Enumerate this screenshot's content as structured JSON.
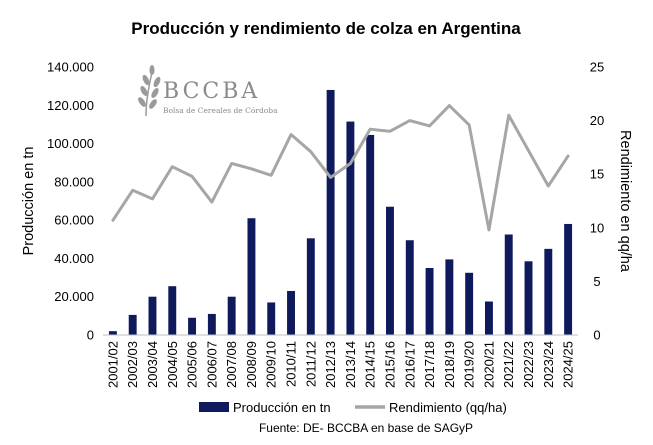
{
  "chart_data": {
    "type": "bar+line",
    "title": "Producción y rendimiento de colza en Argentina",
    "categories": [
      "2001/02",
      "2002/03",
      "2003/04",
      "2004/05",
      "2005/06",
      "2006/07",
      "2007/08",
      "2008/09",
      "2009/10",
      "2010/11",
      "2011/12",
      "2012/13",
      "2013/14",
      "2014/15",
      "2015/16",
      "2016/17",
      "2017/18",
      "2018/19",
      "2019/20",
      "2020/21",
      "2021/22",
      "2022/23",
      "2023/24",
      "2024/25"
    ],
    "series": [
      {
        "name": "Producción en tn",
        "type": "bar",
        "axis": "left",
        "color": "#0e1a5c",
        "values": [
          2000,
          10500,
          20000,
          25500,
          9000,
          11000,
          20000,
          61000,
          17000,
          23000,
          50500,
          128000,
          111500,
          104500,
          67000,
          49500,
          35000,
          39500,
          32500,
          17500,
          52500,
          38500,
          45000,
          58000
        ]
      },
      {
        "name": "Rendimiento (qq/ha)",
        "type": "line",
        "axis": "right",
        "color": "#a6a6a6",
        "values": [
          10.7,
          13.5,
          12.7,
          15.7,
          14.8,
          12.4,
          16.0,
          15.5,
          14.9,
          18.7,
          17.1,
          14.7,
          16.0,
          19.2,
          19.0,
          20.0,
          19.5,
          21.4,
          19.6,
          9.8,
          20.5,
          17.2,
          13.9,
          16.7
        ]
      }
    ],
    "ylabel_left": "Producción en tn",
    "ylabel_right": "Rendimiento en qq/ha",
    "ylim_left": [
      0,
      140000
    ],
    "ylim_right": [
      0,
      25
    ],
    "yticks_left": [
      "0",
      "20.000",
      "40.000",
      "60.000",
      "80.000",
      "100.000",
      "120.000",
      "140.000"
    ],
    "yticks_right": [
      "0",
      "5",
      "10",
      "15",
      "20",
      "25"
    ],
    "grid": false,
    "legend_position": "bottom",
    "source": "Fuente: DE- BCCBA en base de SAGyP"
  },
  "logo": {
    "name": "BCCBA",
    "subtitle": "Bolsa de Cereales de Córdoba"
  }
}
